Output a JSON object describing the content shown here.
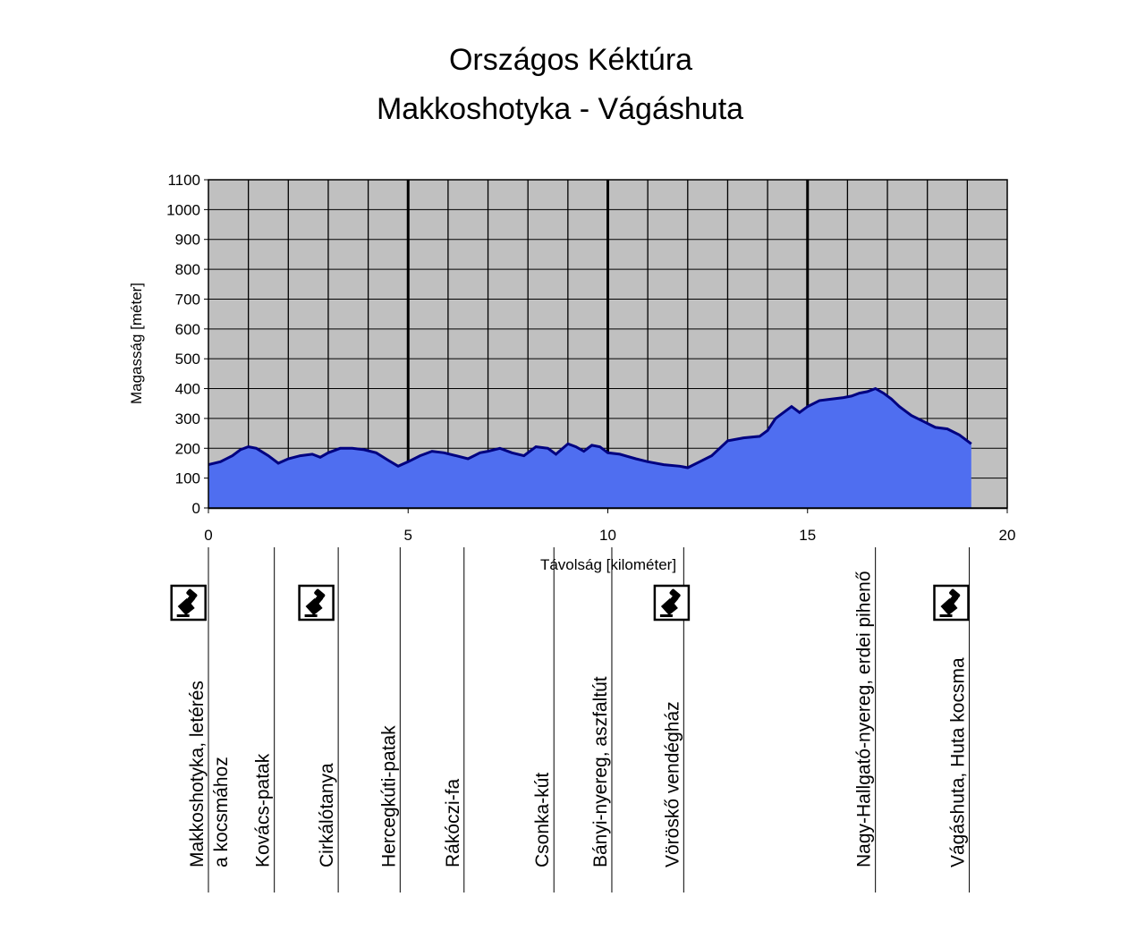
{
  "chart_data": {
    "type": "area",
    "title": "Országos Kéktúra",
    "subtitle": "Makkoshotyka - Vágáshuta",
    "xlabel": "Távolság [kilométer]",
    "ylabel": "Magasság [méter]",
    "xlim": [
      0,
      20
    ],
    "ylim": [
      0,
      1100
    ],
    "x_ticks": [
      0,
      5,
      10,
      15,
      20
    ],
    "x_tick_labels": [
      "0",
      "5",
      "10",
      "15",
      "20"
    ],
    "y_ticks": [
      0,
      100,
      200,
      300,
      400,
      500,
      600,
      700,
      800,
      900,
      1000,
      1100
    ],
    "y_tick_labels": [
      "0",
      "100",
      "200",
      "300",
      "400",
      "500",
      "600",
      "700",
      "800",
      "900",
      "1000",
      "1100"
    ],
    "grid": true,
    "background_color": "#c0c0c0",
    "fill_color": "#4f6ef0",
    "line_color": "#000080",
    "x": [
      0,
      0.3,
      0.6,
      0.8,
      1.0,
      1.2,
      1.5,
      1.75,
      2.0,
      2.3,
      2.6,
      2.8,
      3.0,
      3.3,
      3.6,
      3.9,
      4.2,
      4.5,
      4.75,
      5.0,
      5.3,
      5.6,
      5.9,
      6.2,
      6.5,
      6.8,
      7.0,
      7.3,
      7.6,
      7.9,
      8.2,
      8.5,
      8.7,
      9.0,
      9.2,
      9.4,
      9.6,
      9.8,
      10.0,
      10.3,
      10.7,
      11.0,
      11.4,
      11.8,
      12.0,
      12.3,
      12.6,
      12.8,
      13.0,
      13.4,
      13.8,
      14.0,
      14.2,
      14.4,
      14.6,
      14.8,
      15.0,
      15.3,
      15.6,
      15.9,
      16.1,
      16.3,
      16.5,
      16.7,
      16.9,
      17.1,
      17.3,
      17.6,
      17.9,
      18.2,
      18.5,
      18.8,
      19.0,
      19.1
    ],
    "y": [
      145,
      155,
      175,
      195,
      205,
      200,
      175,
      150,
      165,
      175,
      180,
      170,
      185,
      200,
      200,
      195,
      185,
      160,
      140,
      155,
      175,
      190,
      185,
      175,
      165,
      185,
      190,
      200,
      185,
      175,
      205,
      200,
      180,
      215,
      205,
      190,
      210,
      205,
      185,
      180,
      165,
      155,
      145,
      140,
      135,
      155,
      175,
      200,
      225,
      235,
      240,
      260,
      300,
      320,
      340,
      320,
      340,
      360,
      365,
      370,
      375,
      385,
      390,
      400,
      385,
      365,
      340,
      310,
      290,
      270,
      265,
      245,
      225,
      215
    ],
    "stamp_x": [
      -0.5,
      2.7,
      11.6,
      18.6
    ],
    "places": [
      {
        "x": 0,
        "label": "Makkoshotyka, letérés",
        "label2": "a kocsmához"
      },
      {
        "x": 1.65,
        "label": "Kovács-patak",
        "label2": ""
      },
      {
        "x": 3.25,
        "label": "Cirkálótanya",
        "label2": ""
      },
      {
        "x": 4.8,
        "label": "Hercegkúti-patak",
        "label2": ""
      },
      {
        "x": 6.4,
        "label": "Rákóczi-fa",
        "label2": ""
      },
      {
        "x": 8.65,
        "label": "Csonka-kút",
        "label2": ""
      },
      {
        "x": 10.1,
        "label": "Bányi-nyereg, aszfaltút",
        "label2": ""
      },
      {
        "x": 11.9,
        "label": "Vöröskő vendégház",
        "label2": ""
      },
      {
        "x": 16.7,
        "label": "Nagy-Hallgató-nyereg, erdei pihenő",
        "label2": ""
      },
      {
        "x": 19.05,
        "label": "Vágáshuta, Huta kocsma",
        "label2": ""
      }
    ]
  }
}
